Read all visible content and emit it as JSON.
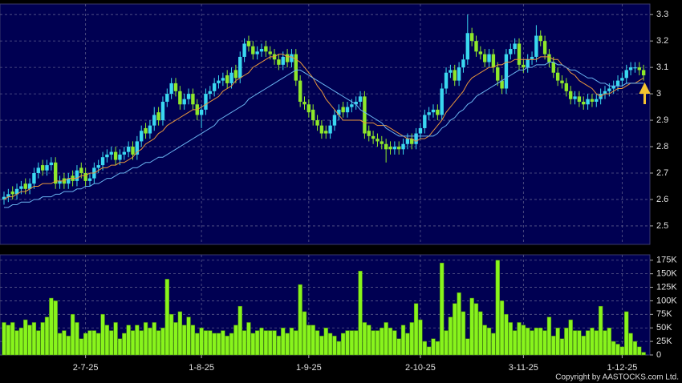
{
  "chart_data": [
    {
      "type": "candlestick",
      "categories": [
        null,
        null,
        null,
        null,
        null,
        null,
        null,
        null,
        null,
        null,
        null,
        null,
        null,
        null,
        null,
        null,
        null,
        null,
        null,
        "2-7-25",
        null,
        null,
        null,
        null,
        null,
        null,
        null,
        null,
        null,
        null,
        null,
        null,
        null,
        null,
        null,
        null,
        null,
        null,
        null,
        null,
        null,
        null,
        null,
        null,
        null,
        null,
        "1-8-25",
        null,
        null,
        null,
        null,
        null,
        null,
        null,
        null,
        null,
        null,
        null,
        null,
        null,
        null,
        null,
        null,
        null,
        null,
        null,
        null,
        null,
        null,
        null,
        null,
        "1-9-25",
        null,
        null,
        null,
        null,
        null,
        null,
        null,
        null,
        null,
        null,
        null,
        null,
        null,
        null,
        null,
        null,
        null,
        null,
        null,
        null,
        null,
        null,
        null,
        null,
        null,
        "2-10-25",
        null,
        null,
        null,
        null,
        null,
        null,
        null,
        null,
        null,
        null,
        null,
        null,
        null,
        null,
        null,
        null,
        null,
        null,
        null,
        null,
        null,
        null,
        null,
        "3-11-25",
        null,
        null,
        null,
        null,
        null,
        null,
        null,
        null,
        null,
        null,
        null,
        null,
        null,
        null,
        null,
        null,
        null,
        null,
        null,
        null,
        null,
        null,
        "1-12-25",
        null,
        null,
        null,
        null,
        null
      ],
      "open": [
        2.6,
        2.61,
        2.63,
        2.62,
        2.64,
        2.66,
        2.64,
        2.66,
        2.7,
        2.73,
        2.71,
        2.73,
        2.74,
        2.66,
        2.68,
        2.66,
        2.69,
        2.67,
        2.72,
        2.7,
        2.67,
        2.68,
        2.72,
        2.73,
        2.76,
        2.77,
        2.78,
        2.75,
        2.77,
        2.78,
        2.8,
        2.77,
        2.82,
        2.87,
        2.85,
        2.88,
        2.93,
        2.9,
        2.97,
        3.0,
        3.04,
        3.01,
        2.96,
        2.98,
        3.0,
        2.96,
        2.92,
        2.94,
        3.0,
        3.01,
        3.04,
        3.05,
        3.07,
        3.04,
        3.09,
        3.06,
        3.14,
        3.2,
        3.18,
        3.15,
        3.16,
        3.18,
        3.16,
        3.15,
        3.13,
        3.11,
        3.15,
        3.12,
        3.15,
        3.05,
        2.97,
        2.96,
        2.94,
        2.9,
        2.88,
        2.86,
        2.85,
        2.88,
        2.92,
        2.95,
        2.93,
        2.95,
        2.96,
        2.97,
        2.99,
        2.86,
        2.84,
        2.83,
        2.82,
        2.81,
        2.8,
        2.79,
        2.8,
        2.79,
        2.81,
        2.83,
        2.81,
        2.85,
        2.87,
        2.92,
        2.93,
        2.94,
        2.92,
        3.02,
        3.08,
        3.09,
        3.05,
        3.1,
        3.13,
        3.23,
        3.2,
        3.16,
        3.15,
        3.12,
        3.15,
        3.1,
        3.05,
        3.02,
        3.15,
        3.17,
        3.19,
        3.11,
        3.1,
        3.13,
        3.14,
        3.22,
        3.2,
        3.15,
        3.12,
        3.08,
        3.05,
        3.04,
        3.01,
        2.98,
        2.99,
        2.97,
        2.96,
        2.98,
        2.97,
        2.98,
        3.0,
        3.01,
        3.02,
        3.03,
        3.05,
        3.06,
        3.09,
        3.1,
        3.1,
        3.09
      ],
      "high": [
        2.63,
        2.64,
        2.65,
        2.66,
        2.67,
        2.68,
        2.68,
        2.72,
        2.74,
        2.75,
        2.75,
        2.76,
        2.76,
        2.69,
        2.7,
        2.7,
        2.71,
        2.73,
        2.74,
        2.72,
        2.7,
        2.74,
        2.75,
        2.78,
        2.79,
        2.8,
        2.8,
        2.79,
        2.8,
        2.82,
        2.82,
        2.84,
        2.88,
        2.89,
        2.9,
        2.95,
        2.95,
        2.99,
        3.02,
        3.06,
        3.06,
        3.03,
        3.0,
        3.02,
        3.02,
        2.98,
        2.96,
        3.02,
        3.03,
        3.06,
        3.07,
        3.08,
        3.09,
        3.1,
        3.11,
        3.16,
        3.21,
        3.22,
        3.2,
        3.18,
        3.19,
        3.2,
        3.18,
        3.17,
        3.15,
        3.16,
        3.17,
        3.17,
        3.17,
        3.07,
        2.99,
        2.98,
        2.96,
        2.92,
        2.9,
        2.88,
        2.9,
        2.94,
        2.96,
        2.97,
        2.97,
        2.98,
        2.99,
        3.01,
        3.01,
        2.88,
        2.86,
        2.85,
        2.84,
        2.83,
        2.82,
        2.82,
        2.82,
        2.83,
        2.85,
        2.85,
        2.87,
        2.89,
        2.94,
        2.95,
        2.96,
        2.96,
        3.04,
        3.1,
        3.11,
        3.11,
        3.12,
        3.15,
        3.3,
        3.25,
        3.22,
        3.18,
        3.17,
        3.17,
        3.17,
        3.12,
        3.07,
        3.17,
        3.19,
        3.21,
        3.21,
        3.13,
        3.15,
        3.16,
        3.26,
        3.24,
        3.22,
        3.17,
        3.14,
        3.1,
        3.07,
        3.06,
        3.03,
        3.01,
        3.01,
        2.99,
        3.0,
        3.0,
        3.0,
        3.02,
        3.03,
        3.04,
        3.05,
        3.07,
        3.08,
        3.11,
        3.12,
        3.12,
        3.12,
        3.11
      ],
      "low": [
        2.58,
        2.59,
        2.6,
        2.6,
        2.62,
        2.62,
        2.62,
        2.64,
        2.68,
        2.69,
        2.69,
        2.71,
        2.64,
        2.64,
        2.64,
        2.64,
        2.65,
        2.65,
        2.68,
        2.65,
        2.65,
        2.66,
        2.7,
        2.71,
        2.74,
        2.75,
        2.73,
        2.73,
        2.75,
        2.76,
        2.75,
        2.75,
        2.8,
        2.83,
        2.83,
        2.86,
        2.88,
        2.88,
        2.95,
        2.98,
        2.99,
        2.94,
        2.94,
        2.96,
        2.94,
        2.9,
        2.87,
        2.92,
        2.98,
        2.99,
        3.02,
        3.03,
        3.02,
        3.02,
        3.04,
        3.04,
        3.12,
        3.16,
        3.13,
        3.13,
        3.14,
        3.14,
        3.13,
        3.11,
        3.09,
        3.09,
        3.1,
        3.1,
        3.03,
        2.95,
        2.94,
        2.91,
        2.88,
        2.86,
        2.83,
        2.83,
        2.83,
        2.86,
        2.9,
        2.91,
        2.91,
        2.93,
        2.94,
        2.95,
        2.83,
        2.82,
        2.81,
        2.8,
        2.79,
        2.74,
        2.77,
        2.77,
        2.77,
        2.77,
        2.79,
        2.79,
        2.79,
        2.83,
        2.85,
        2.9,
        2.91,
        2.9,
        2.9,
        3.0,
        3.06,
        3.03,
        3.03,
        3.08,
        3.11,
        3.18,
        3.14,
        3.13,
        3.1,
        3.1,
        3.08,
        3.03,
        3.0,
        3.0,
        3.13,
        3.15,
        3.09,
        3.08,
        3.08,
        3.11,
        3.12,
        3.18,
        3.13,
        3.1,
        3.06,
        3.03,
        3.02,
        2.99,
        2.96,
        2.96,
        2.95,
        2.94,
        2.94,
        2.95,
        2.95,
        2.96,
        2.98,
        2.99,
        3.0,
        3.01,
        3.03,
        3.04,
        3.07,
        3.08,
        3.07,
        3.05
      ],
      "close": [
        2.61,
        2.62,
        2.62,
        2.64,
        2.65,
        2.64,
        2.66,
        2.7,
        2.72,
        2.71,
        2.73,
        2.74,
        2.66,
        2.67,
        2.66,
        2.68,
        2.67,
        2.71,
        2.7,
        2.67,
        2.68,
        2.72,
        2.73,
        2.76,
        2.77,
        2.78,
        2.75,
        2.77,
        2.78,
        2.8,
        2.77,
        2.82,
        2.86,
        2.85,
        2.88,
        2.92,
        2.9,
        2.97,
        3.0,
        3.04,
        3.01,
        2.96,
        2.98,
        3.0,
        2.96,
        2.92,
        2.94,
        3.0,
        3.01,
        3.04,
        3.05,
        3.06,
        3.04,
        3.08,
        3.06,
        3.14,
        3.19,
        3.18,
        3.15,
        3.16,
        3.17,
        3.16,
        3.15,
        3.13,
        3.11,
        3.14,
        3.12,
        3.15,
        3.05,
        2.97,
        2.96,
        2.93,
        2.9,
        2.88,
        2.85,
        2.85,
        2.88,
        2.92,
        2.94,
        2.93,
        2.95,
        2.96,
        2.97,
        2.99,
        2.85,
        2.84,
        2.83,
        2.82,
        2.81,
        2.79,
        2.79,
        2.8,
        2.79,
        2.81,
        2.83,
        2.81,
        2.85,
        2.87,
        2.92,
        2.93,
        2.94,
        2.92,
        3.02,
        3.08,
        3.09,
        3.05,
        3.1,
        3.13,
        3.23,
        3.2,
        3.16,
        3.15,
        3.12,
        3.15,
        3.1,
        3.05,
        3.02,
        3.15,
        3.17,
        3.19,
        3.11,
        3.1,
        3.13,
        3.14,
        3.22,
        3.2,
        3.15,
        3.12,
        3.08,
        3.05,
        3.04,
        3.01,
        2.98,
        2.99,
        2.97,
        2.96,
        2.98,
        2.97,
        2.98,
        3.0,
        3.01,
        3.02,
        3.03,
        3.05,
        3.06,
        3.09,
        3.1,
        3.1,
        3.09,
        3.07
      ],
      "up_color": "#3ad8f0",
      "down_color": "#8ee82a",
      "lines": [
        {
          "color": "#e8963c",
          "values": [
            2.6,
            2.61,
            2.61,
            2.62,
            2.63,
            2.63,
            2.64,
            2.65,
            2.65,
            2.66,
            2.66,
            2.66,
            2.67,
            2.67,
            2.67,
            2.68,
            2.68,
            2.68,
            2.69,
            2.69,
            2.7,
            2.7,
            2.71,
            2.72,
            2.72,
            2.73,
            2.73,
            2.74,
            2.74,
            2.75,
            2.76,
            2.78,
            2.79,
            2.81,
            2.82,
            2.83,
            2.85,
            2.86,
            2.88,
            2.89,
            2.9,
            2.91,
            2.92,
            2.93,
            2.94,
            2.94,
            2.95,
            2.96,
            2.97,
            2.98,
            2.99,
            3.01,
            3.02,
            3.03,
            3.05,
            3.06,
            3.07,
            3.08,
            3.1,
            3.11,
            3.12,
            3.13,
            3.14,
            3.14,
            3.15,
            3.15,
            3.14,
            3.14,
            3.13,
            3.12,
            3.1,
            3.08,
            3.06,
            3.03,
            3.01,
            2.98,
            2.96,
            2.94,
            2.92,
            2.9,
            2.9,
            2.9,
            2.9,
            2.9,
            2.89,
            2.89,
            2.89,
            2.88,
            2.88,
            2.88,
            2.87,
            2.86,
            2.85,
            2.84,
            2.83,
            2.83,
            2.82,
            2.83,
            2.83,
            2.84,
            2.86,
            2.88,
            2.9,
            2.93,
            2.95,
            2.97,
            2.99,
            3.01,
            3.04,
            3.06,
            3.07,
            3.08,
            3.09,
            3.1,
            3.1,
            3.11,
            3.11,
            3.12,
            3.12,
            3.13,
            3.13,
            3.13,
            3.13,
            3.13,
            3.13,
            3.14,
            3.14,
            3.14,
            3.13,
            3.13,
            3.11,
            3.1,
            3.08,
            3.07,
            3.05,
            3.04,
            3.03,
            3.02,
            3.0,
            2.99,
            3.0,
            3.0,
            3.01,
            3.02,
            3.02,
            3.03,
            3.04,
            3.04,
            3.05,
            3.06
          ]
        },
        {
          "color": "#6ab4f0",
          "values": [
            2.57,
            2.57,
            2.58,
            2.58,
            2.59,
            2.59,
            2.59,
            2.6,
            2.6,
            2.61,
            2.61,
            2.61,
            2.62,
            2.62,
            2.63,
            2.63,
            2.63,
            2.64,
            2.64,
            2.65,
            2.65,
            2.66,
            2.66,
            2.67,
            2.68,
            2.68,
            2.69,
            2.7,
            2.7,
            2.71,
            2.72,
            2.72,
            2.73,
            2.74,
            2.74,
            2.75,
            2.76,
            2.76,
            2.77,
            2.78,
            2.79,
            2.8,
            2.81,
            2.82,
            2.83,
            2.84,
            2.85,
            2.86,
            2.87,
            2.88,
            2.9,
            2.91,
            2.92,
            2.93,
            2.94,
            2.95,
            2.96,
            2.98,
            2.99,
            3.0,
            3.01,
            3.02,
            3.03,
            3.04,
            3.05,
            3.06,
            3.07,
            3.08,
            3.09,
            3.09,
            3.08,
            3.07,
            3.06,
            3.05,
            3.04,
            3.03,
            3.02,
            3.01,
            3.0,
            2.99,
            2.98,
            2.97,
            2.96,
            2.94,
            2.93,
            2.92,
            2.91,
            2.9,
            2.89,
            2.87,
            2.86,
            2.85,
            2.84,
            2.84,
            2.84,
            2.84,
            2.84,
            2.84,
            2.84,
            2.84,
            2.84,
            2.85,
            2.87,
            2.88,
            2.9,
            2.91,
            2.93,
            2.94,
            2.96,
            2.97,
            2.99,
            3.0,
            3.01,
            3.02,
            3.03,
            3.04,
            3.05,
            3.06,
            3.07,
            3.08,
            3.09,
            3.09,
            3.1,
            3.1,
            3.11,
            3.11,
            3.11,
            3.12,
            3.12,
            3.11,
            3.11,
            3.1,
            3.09,
            3.09,
            3.08,
            3.07,
            3.06,
            3.06,
            3.05,
            3.04,
            3.04,
            3.03,
            3.03,
            3.03,
            3.03,
            3.04,
            3.04,
            3.04,
            3.04,
            3.04
          ]
        }
      ],
      "ylim": [
        2.43,
        3.34
      ],
      "yticks": [
        2.5,
        2.6,
        2.7,
        2.8,
        2.9,
        3,
        3.1,
        3.2,
        3.3
      ],
      "grid": true
    },
    {
      "type": "bar",
      "values": [
        60000,
        55000,
        60000,
        45000,
        50000,
        65000,
        55000,
        60000,
        45000,
        60000,
        70000,
        105000,
        100000,
        40000,
        45000,
        35000,
        75000,
        60000,
        30000,
        40000,
        45000,
        45000,
        40000,
        75000,
        55000,
        45000,
        60000,
        30000,
        40000,
        55000,
        45000,
        55000,
        45000,
        60000,
        50000,
        60000,
        45000,
        50000,
        140000,
        75000,
        60000,
        80000,
        55000,
        70000,
        55000,
        40000,
        50000,
        45000,
        45000,
        40000,
        40000,
        45000,
        35000,
        40000,
        55000,
        90000,
        45000,
        60000,
        40000,
        45000,
        50000,
        45000,
        45000,
        45000,
        35000,
        50000,
        40000,
        50000,
        45000,
        130000,
        80000,
        55000,
        55000,
        45000,
        35000,
        50000,
        40000,
        35000,
        25000,
        40000,
        45000,
        45000,
        45000,
        155000,
        60000,
        55000,
        45000,
        45000,
        50000,
        60000,
        50000,
        45000,
        30000,
        55000,
        40000,
        60000,
        95000,
        65000,
        25000,
        15000,
        30000,
        25000,
        170000,
        45000,
        70000,
        95000,
        115000,
        80000,
        30000,
        105000,
        95000,
        80000,
        55000,
        50000,
        40000,
        175000,
        100000,
        75000,
        60000,
        45000,
        60000,
        55000,
        50000,
        45000,
        50000,
        50000,
        45000,
        70000,
        35000,
        50000,
        30000,
        50000,
        65000,
        45000,
        45000,
        35000,
        45000,
        50000,
        45000,
        90000,
        45000,
        50000,
        25000,
        20000,
        15000,
        80000,
        40000,
        25000,
        15000,
        5000
      ],
      "color": "#88f41c",
      "ylim": [
        0,
        185000
      ],
      "yticks": [
        0,
        {
          "value": 25000,
          "label": "25K"
        },
        {
          "value": 50000,
          "label": "50K"
        },
        {
          "value": 75000,
          "label": "75K"
        },
        {
          "value": 100000,
          "label": "100K"
        },
        {
          "value": 125000,
          "label": "125K"
        },
        {
          "value": 150000,
          "label": "150K"
        },
        {
          "value": 175000,
          "label": "175K"
        }
      ],
      "grid": true
    }
  ],
  "copyright": "Copyright by AASTOCKS.com Ltd."
}
